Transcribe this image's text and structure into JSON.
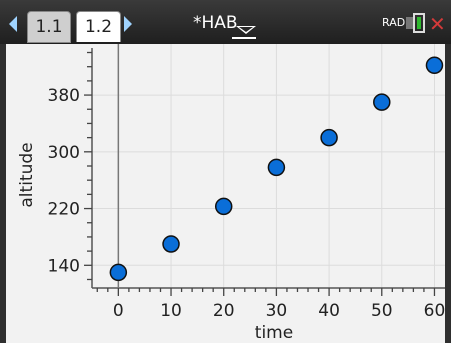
{
  "topbar": {
    "tabs": [
      {
        "label": "1.1",
        "active": false
      },
      {
        "label": "1.2",
        "active": true
      }
    ],
    "document_title": "*HAB",
    "angle_mode": "RAD",
    "colors": {
      "tab_arrow": "#9fd3ff",
      "close": "#d43a3a",
      "battery": "#2eb82e"
    }
  },
  "chart_data": {
    "type": "scatter",
    "xlabel": "time",
    "ylabel": "altitude",
    "x": [
      0,
      10,
      20,
      30,
      40,
      50,
      60
    ],
    "y": [
      130,
      170,
      223,
      278,
      320,
      370,
      422
    ],
    "xlim": [
      -5,
      62
    ],
    "ylim": [
      108,
      452
    ],
    "x_ticks": [
      0,
      10,
      20,
      30,
      40,
      50,
      60
    ],
    "y_ticks": [
      140,
      220,
      300,
      380
    ],
    "grid": true,
    "marker_color": "#0a6ed8"
  }
}
